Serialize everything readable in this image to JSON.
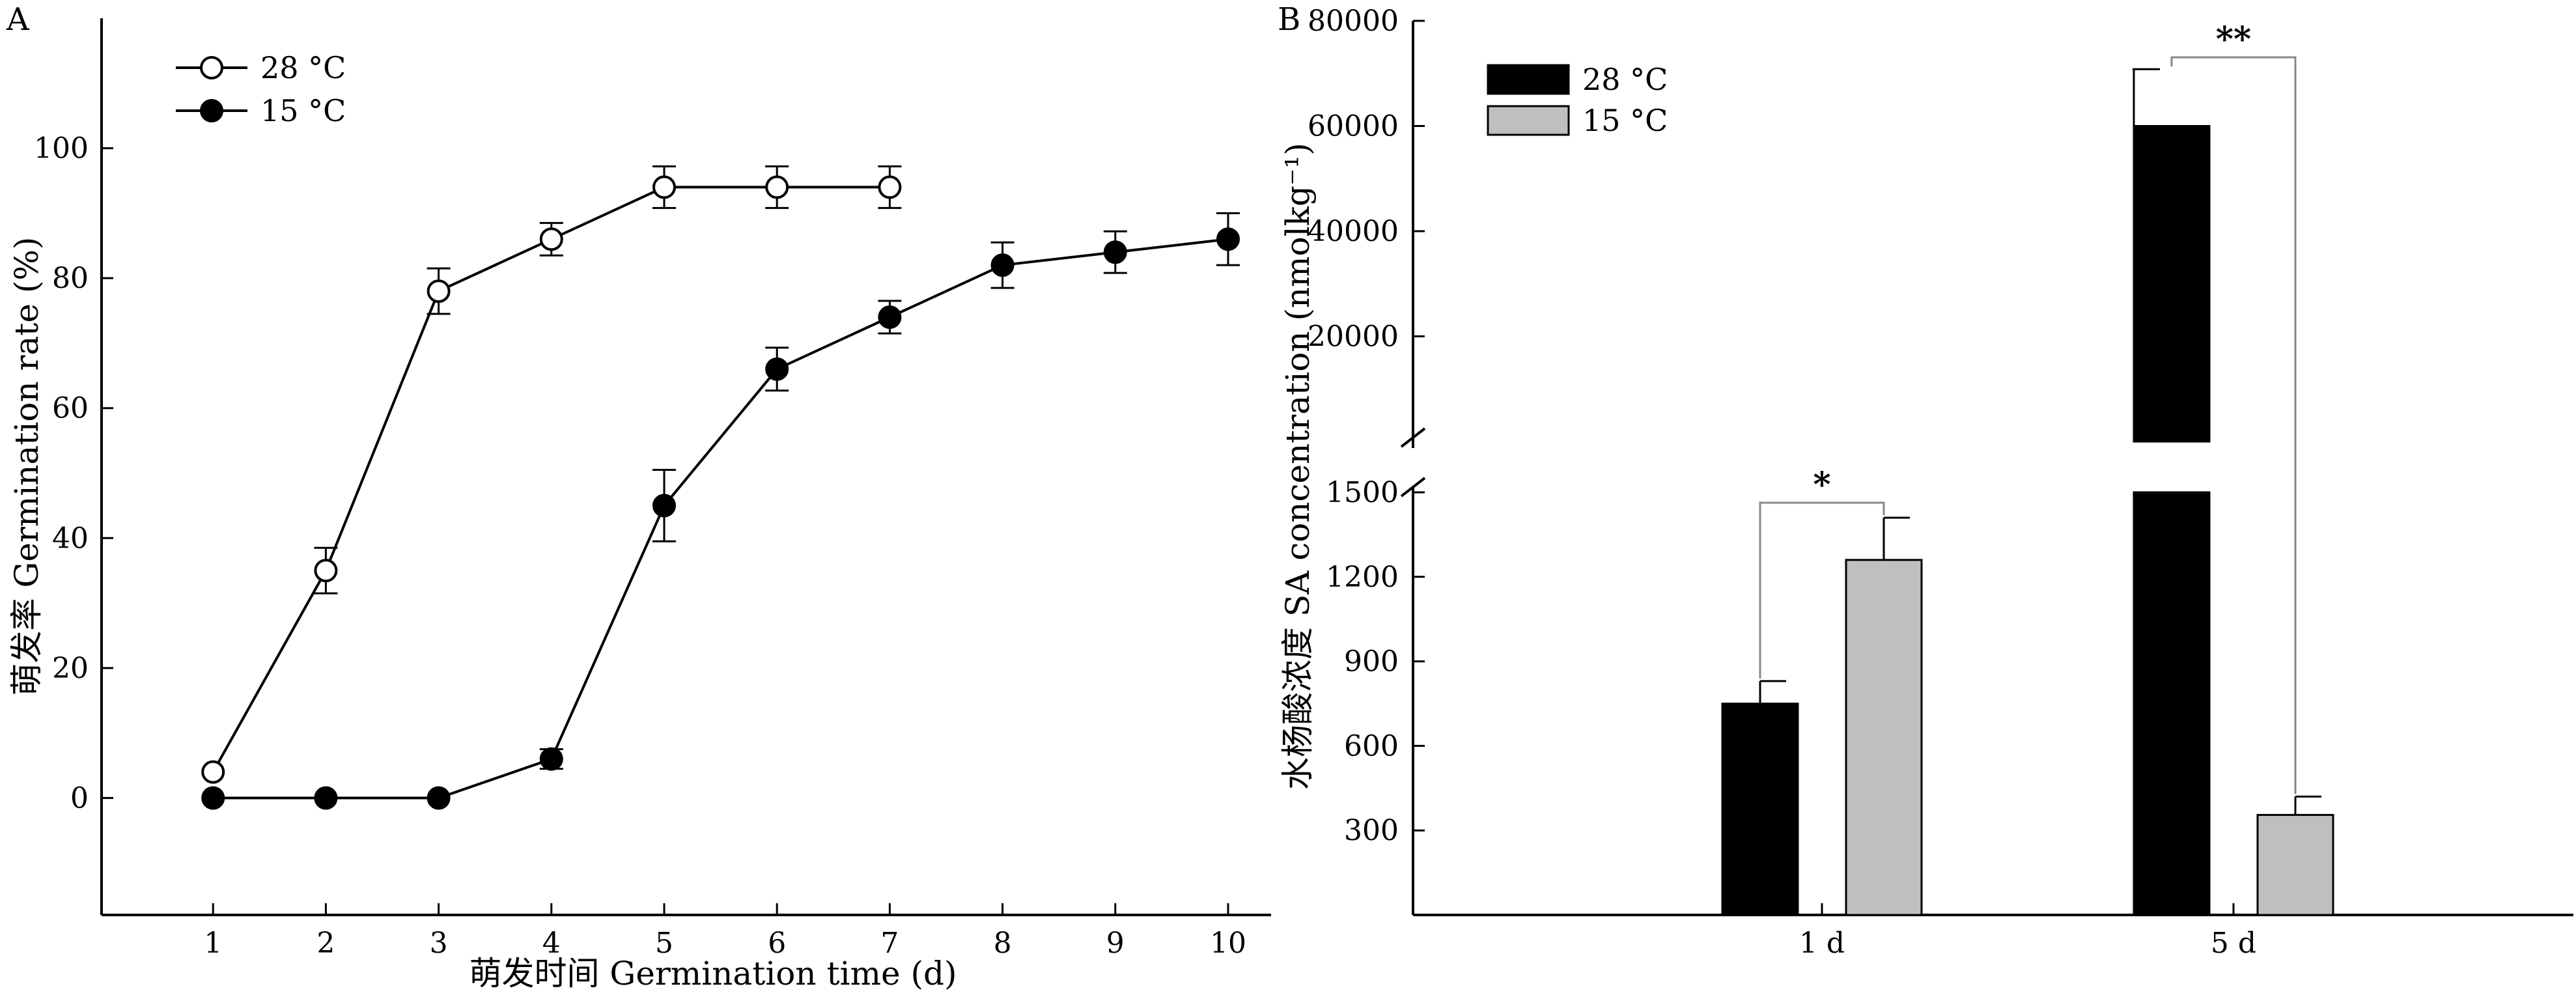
{
  "chart_data": [
    {
      "panel": "A",
      "type": "line",
      "xlabel": "萌发时间  Germination time (d)",
      "ylabel": "萌发率 Germination rate (%)",
      "xlim": [
        0,
        10.5
      ],
      "ylim": [
        -18,
        120
      ],
      "x_ticks": [
        "1",
        "2",
        "3",
        "4",
        "5",
        "6",
        "7",
        "8",
        "9",
        "10"
      ],
      "y_ticks": [
        "0",
        "20",
        "40",
        "60",
        "80",
        "100"
      ],
      "legend_position": "top-left",
      "series": [
        {
          "name": "28 °C",
          "marker": "open-circle",
          "x": [
            1,
            2,
            3,
            4,
            5,
            6,
            7
          ],
          "values": [
            4,
            35,
            78,
            86,
            94,
            94,
            94
          ],
          "error": [
            0,
            3.5,
            3.5,
            2.5,
            3.2,
            3.2,
            3.2
          ]
        },
        {
          "name": "15 °C",
          "marker": "filled-circle",
          "x": [
            1,
            2,
            3,
            4,
            5,
            6,
            7,
            8,
            9,
            10
          ],
          "values": [
            0,
            0,
            0,
            6,
            45,
            66,
            74,
            82,
            84,
            86
          ],
          "error": [
            0,
            0,
            0,
            1.5,
            5.5,
            3.3,
            2.5,
            3.5,
            3.2,
            4
          ]
        }
      ]
    },
    {
      "panel": "B",
      "type": "bar",
      "ylabel": "水杨酸浓度 SA concentration (nmolkg⁻¹)",
      "categories": [
        "1 d",
        "5 d"
      ],
      "broken_axis": true,
      "ylim_lower": [
        0,
        1500
      ],
      "ylim_upper": [
        0,
        80000
      ],
      "y_ticks_lower": [
        "300",
        "600",
        "900",
        "1200",
        "1500"
      ],
      "y_ticks_upper": [
        "20000",
        "40000",
        "60000",
        "80000"
      ],
      "legend_position": "top-left",
      "series": [
        {
          "name": "28 °C",
          "color": "#000000",
          "values": [
            750,
            60000
          ],
          "error": [
            80,
            10800
          ]
        },
        {
          "name": "15 °C",
          "color": "#bfbfbf",
          "values": [
            1260,
            355
          ],
          "error": [
            150,
            65
          ]
        }
      ],
      "significance": [
        {
          "category": "1 d",
          "label": "*"
        },
        {
          "category": "5 d",
          "label": "**"
        }
      ]
    }
  ]
}
